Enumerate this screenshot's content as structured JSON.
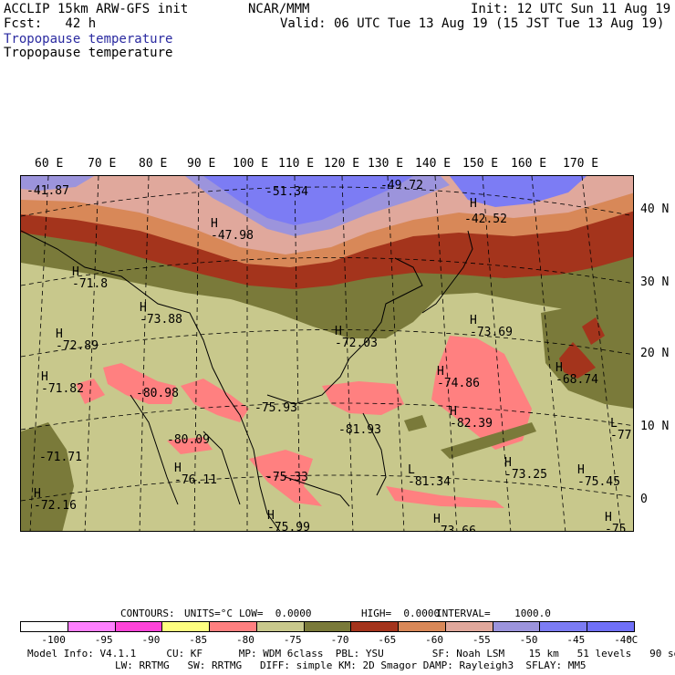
{
  "header": {
    "model_title": "ACCLIP 15km ARW-GFS init",
    "forecast": "Fcst:   42 h",
    "center": "NCAR/MMM",
    "init": "Init: 12 UTC Sun 11 Aug 19",
    "valid": "Valid: 06 UTC Tue 13 Aug 19 (15 JST Tue 13 Aug 19)",
    "field_label_1": "Tropopause temperature",
    "field_label_2": "Tropopause temperature"
  },
  "axes": {
    "longitudes": [
      "60 E",
      "70 E",
      "80 E",
      "90 E",
      "100 E",
      "110 E",
      "120 E",
      "130 E",
      "140 E",
      "150 E",
      "160 E",
      "170 E"
    ],
    "latitudes": [
      "40 N",
      "30 N",
      "20 N",
      "10 N",
      "0"
    ]
  },
  "map": {
    "extrema": [
      {
        "type": "",
        "value": "-41.87"
      },
      {
        "type": "",
        "value": "-51.34"
      },
      {
        "type": "",
        "value": "-49.72"
      },
      {
        "type": "H",
        "value": ""
      },
      {
        "type": "",
        "value": "-42.52"
      },
      {
        "type": "H",
        "value": "-47.98"
      },
      {
        "type": "H",
        "value": "-71.8"
      },
      {
        "type": "H",
        "value": "-73.88"
      },
      {
        "type": "H",
        "value": "-72.89"
      },
      {
        "type": "H",
        "value": "-72.03"
      },
      {
        "type": "H",
        "value": "-73.69"
      },
      {
        "type": "H",
        "value": "-71.82"
      },
      {
        "type": "",
        "value": "-80.98"
      },
      {
        "type": "",
        "value": "-75.93"
      },
      {
        "type": "H",
        "value": "-74.86"
      },
      {
        "type": "H",
        "value": "-68.74"
      },
      {
        "type": "",
        "value": "-81.93"
      },
      {
        "type": "H",
        "value": "-82.39"
      },
      {
        "type": "",
        "value": "-80.09"
      },
      {
        "type": "L",
        "value": "-77"
      },
      {
        "type": "",
        "value": "-71.71"
      },
      {
        "type": "H",
        "value": "-76.11"
      },
      {
        "type": "",
        "value": "-75.33"
      },
      {
        "type": "L",
        "value": "-81.34"
      },
      {
        "type": "H",
        "value": "-73.25"
      },
      {
        "type": "H",
        "value": "-75.45"
      },
      {
        "type": "H",
        "value": "-72.16"
      },
      {
        "type": "H",
        "value": "-75.99"
      },
      {
        "type": "H",
        "value": "-73.66"
      },
      {
        "type": "H",
        "value": "-75"
      }
    ]
  },
  "contour_info": {
    "contours": "CONTOURS:",
    "units": "UNITS=°C",
    "low": "LOW=  0.0000",
    "high": "HIGH=  0.0000",
    "interval": "INTERVAL=    1000.0"
  },
  "colorbar": {
    "colors": [
      "#ffffff",
      "#ff80ff",
      "#ff44d8",
      "#ffff80",
      "#ff8080",
      "#c8c88c",
      "#7a7a3a",
      "#a4341c",
      "#d88858",
      "#e0a89c",
      "#9c94dc",
      "#7c7cf4",
      "#7070f8"
    ],
    "ticks": [
      "-100",
      "-95",
      "-90",
      "-85",
      "-80",
      "-75",
      "-70",
      "-65",
      "-60",
      "-55",
      "-50",
      "-45",
      "-40"
    ],
    "unit": "°C"
  },
  "footer": {
    "line1": "Model Info: V4.1.1     CU: KF      MP: WDM 6class  PBL: YSU        SF: Noah LSM    15 km   51 levels   90 sec",
    "line2": "LW: RRTMG   SW: RRTMG   DIFF: simple KM: 2D Smagor DAMP: Rayleigh3  SFLAY: MM5"
  }
}
